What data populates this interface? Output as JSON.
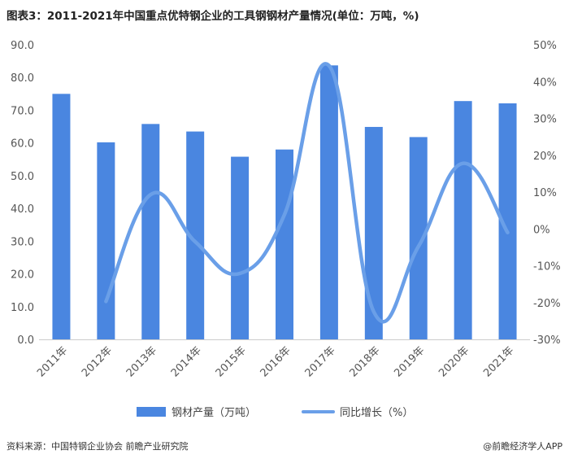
{
  "title": "图表3：2011-2021年中国重点优特钢企业的工具钢钢材产量情况(单位：万吨，%)",
  "footer": {
    "source": "资料来源：中国特钢企业协会 前瞻产业研究院",
    "brand": "@前瞻经济学人APP"
  },
  "colors": {
    "bar": "#4a86e0",
    "line": "#6a9fe8"
  },
  "chart_data": {
    "type": "bar",
    "categories": [
      "2011年",
      "2012年",
      "2013年",
      "2014年",
      "2015年",
      "2016年",
      "2017年",
      "2018年",
      "2019年",
      "2020年",
      "2021年"
    ],
    "series": [
      {
        "name": "钢材产量（万吨）",
        "type": "bar",
        "axis": "left",
        "values": [
          75.0,
          60.2,
          65.8,
          63.5,
          55.8,
          58.0,
          83.7,
          64.9,
          61.8,
          72.8,
          72.1
        ]
      },
      {
        "name": "同比增长（%）",
        "type": "line",
        "axis": "right",
        "values": [
          null,
          -19.7,
          9.3,
          -3.5,
          -12.1,
          3.9,
          44.3,
          -22.5,
          -4.8,
          17.8,
          -1.0
        ]
      }
    ],
    "left_axis": {
      "min": 0,
      "max": 90,
      "step": 10,
      "ticks": [
        "0.0",
        "10.0",
        "20.0",
        "30.0",
        "40.0",
        "50.0",
        "60.0",
        "70.0",
        "80.0",
        "90.0"
      ]
    },
    "right_axis": {
      "min": -30,
      "max": 50,
      "step": 10,
      "ticks": [
        "-30%",
        "-20%",
        "-10%",
        "0%",
        "10%",
        "20%",
        "30%",
        "40%",
        "50%"
      ]
    },
    "legend_position": "bottom",
    "grid": false
  }
}
